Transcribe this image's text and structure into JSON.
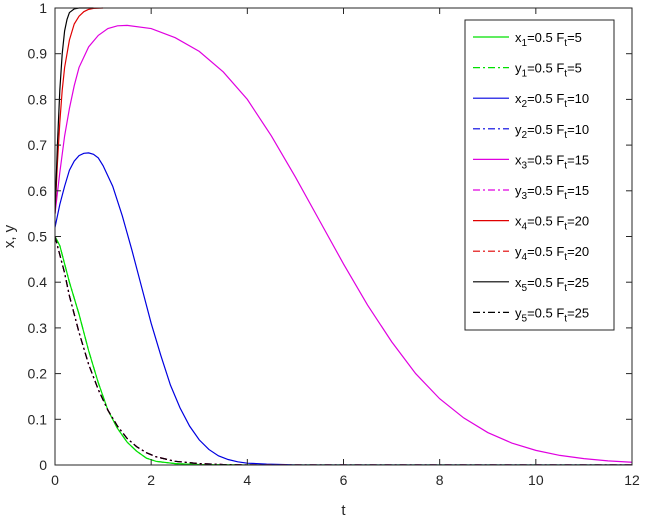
{
  "chart_data": {
    "type": "line",
    "xlabel": "t",
    "ylabel": "x, y",
    "xlim": [
      0,
      12
    ],
    "ylim": [
      0,
      1
    ],
    "x_ticks": [
      0,
      2,
      4,
      6,
      8,
      10,
      12
    ],
    "y_ticks": [
      0,
      0.1,
      0.2,
      0.3,
      0.4,
      0.5,
      0.6,
      0.7,
      0.8,
      0.9,
      1
    ],
    "grid": false,
    "legend_position": "top-right",
    "series": [
      {
        "name_main": "x",
        "name_sub": "1",
        "name_mid": "=0.5 F",
        "name_sub2": "t",
        "name_end": "=5",
        "color": "#00e000",
        "style": "solid",
        "x": [
          0,
          0.1,
          0.2,
          0.3,
          0.5,
          0.7,
          0.9,
          1.1,
          1.3,
          1.5,
          1.7,
          1.9,
          2.1,
          2.5,
          3,
          3.5,
          4,
          12
        ],
        "y": [
          0.5,
          0.48,
          0.44,
          0.4,
          0.33,
          0.25,
          0.18,
          0.12,
          0.08,
          0.05,
          0.03,
          0.015,
          0.008,
          0.003,
          0.001,
          0.0005,
          0,
          0
        ]
      },
      {
        "name_main": "y",
        "name_sub": "1",
        "name_mid": "=0.5 F",
        "name_sub2": "t",
        "name_end": "=5",
        "color": "#00e000",
        "style": "dashdot",
        "x": [
          0,
          0.1,
          0.2,
          0.3,
          0.5,
          0.7,
          0.9,
          1.1,
          1.3,
          1.5,
          1.7,
          1.9,
          2.1,
          2.5,
          3,
          3.5,
          4,
          12
        ],
        "y": [
          0.5,
          0.48,
          0.44,
          0.4,
          0.33,
          0.25,
          0.18,
          0.12,
          0.08,
          0.05,
          0.03,
          0.015,
          0.008,
          0.003,
          0.001,
          0.0005,
          0,
          0
        ]
      },
      {
        "name_main": "x",
        "name_sub": "2",
        "name_mid": "=0.5 F",
        "name_sub2": "t",
        "name_end": "=10",
        "color": "#0000e0",
        "style": "solid",
        "x": [
          0,
          0.1,
          0.2,
          0.3,
          0.4,
          0.5,
          0.6,
          0.7,
          0.8,
          0.9,
          1.0,
          1.2,
          1.4,
          1.6,
          1.8,
          2.0,
          2.2,
          2.4,
          2.6,
          2.8,
          3.0,
          3.2,
          3.4,
          3.6,
          3.8,
          4.0,
          4.4,
          4.8,
          5,
          12
        ],
        "y": [
          0.52,
          0.57,
          0.61,
          0.645,
          0.665,
          0.677,
          0.682,
          0.683,
          0.68,
          0.672,
          0.655,
          0.61,
          0.545,
          0.47,
          0.39,
          0.31,
          0.24,
          0.175,
          0.125,
          0.085,
          0.055,
          0.034,
          0.02,
          0.012,
          0.007,
          0.004,
          0.002,
          0.001,
          0,
          0
        ]
      },
      {
        "name_main": "y",
        "name_sub": "2",
        "name_mid": "=0.5 F",
        "name_sub2": "t",
        "name_end": "=10",
        "color": "#0000e0",
        "style": "dashdot",
        "x": [
          0,
          0.1,
          0.2,
          0.3,
          0.5,
          0.7,
          0.9,
          1.1,
          1.3,
          1.5,
          1.7,
          1.9,
          2.1,
          2.5,
          3,
          3.5,
          4,
          12
        ],
        "y": [
          0.5,
          0.46,
          0.42,
          0.37,
          0.29,
          0.22,
          0.165,
          0.12,
          0.085,
          0.058,
          0.04,
          0.027,
          0.018,
          0.008,
          0.003,
          0.001,
          0,
          0
        ]
      },
      {
        "name_main": "x",
        "name_sub": "3",
        "name_mid": "=0.5 F",
        "name_sub2": "t",
        "name_end": "=15",
        "color": "#e000e0",
        "style": "solid",
        "x": [
          0,
          0.1,
          0.2,
          0.3,
          0.4,
          0.5,
          0.7,
          0.9,
          1.1,
          1.3,
          1.5,
          2.0,
          2.5,
          3.0,
          3.5,
          4.0,
          4.5,
          5.0,
          5.5,
          6.0,
          6.5,
          7.0,
          7.5,
          8.0,
          8.5,
          9.0,
          9.5,
          10.0,
          10.5,
          11.0,
          11.5,
          12.0
        ],
        "y": [
          0.55,
          0.64,
          0.72,
          0.78,
          0.83,
          0.87,
          0.915,
          0.94,
          0.955,
          0.961,
          0.962,
          0.955,
          0.935,
          0.905,
          0.86,
          0.8,
          0.72,
          0.63,
          0.535,
          0.44,
          0.35,
          0.27,
          0.2,
          0.145,
          0.103,
          0.071,
          0.048,
          0.032,
          0.021,
          0.014,
          0.009,
          0.006
        ]
      },
      {
        "name_main": "y",
        "name_sub": "3",
        "name_mid": "=0.5 F",
        "name_sub2": "t",
        "name_end": "=15",
        "color": "#e000e0",
        "style": "dashdot",
        "x": [
          0,
          0.1,
          0.2,
          0.3,
          0.5,
          0.7,
          0.9,
          1.1,
          1.3,
          1.5,
          1.7,
          1.9,
          2.1,
          2.5,
          3,
          3.5,
          4,
          12
        ],
        "y": [
          0.5,
          0.46,
          0.42,
          0.37,
          0.29,
          0.22,
          0.165,
          0.12,
          0.085,
          0.058,
          0.04,
          0.027,
          0.018,
          0.008,
          0.003,
          0.001,
          0,
          0
        ]
      },
      {
        "name_main": "x",
        "name_sub": "4",
        "name_mid": "=0.5 F",
        "name_sub2": "t",
        "name_end": "=20",
        "color": "#e00000",
        "style": "solid",
        "x": [
          0,
          0.05,
          0.1,
          0.15,
          0.2,
          0.3,
          0.4,
          0.5,
          0.6,
          0.7,
          0.8,
          1.0
        ],
        "y": [
          0.55,
          0.66,
          0.75,
          0.82,
          0.87,
          0.93,
          0.965,
          0.982,
          0.992,
          0.997,
          0.999,
          1.0
        ]
      },
      {
        "name_main": "y",
        "name_sub": "4",
        "name_mid": "=0.5 F",
        "name_sub2": "t",
        "name_end": "=20",
        "color": "#e00000",
        "style": "dashdot",
        "x": [
          0,
          0.1,
          0.2,
          0.3,
          0.5,
          0.7,
          0.9,
          1.1,
          1.3,
          1.5,
          1.7,
          1.9,
          2.1,
          2.5,
          3,
          3.5,
          4,
          12
        ],
        "y": [
          0.5,
          0.46,
          0.42,
          0.37,
          0.29,
          0.22,
          0.165,
          0.12,
          0.085,
          0.058,
          0.04,
          0.027,
          0.018,
          0.008,
          0.003,
          0.001,
          0,
          0
        ]
      },
      {
        "name_main": "x",
        "name_sub": "5",
        "name_mid": "=0.5 F",
        "name_sub2": "t",
        "name_end": "=25",
        "color": "#000000",
        "style": "solid",
        "x": [
          0,
          0.05,
          0.1,
          0.15,
          0.2,
          0.25,
          0.3,
          0.4,
          0.5,
          0.6,
          0.8
        ],
        "y": [
          0.55,
          0.7,
          0.82,
          0.9,
          0.95,
          0.975,
          0.99,
          0.998,
          1.0,
          1.0,
          1.0
        ]
      },
      {
        "name_main": "y",
        "name_sub": "5",
        "name_mid": "=0.5 F",
        "name_sub2": "t",
        "name_end": "=25",
        "color": "#000000",
        "style": "dashdot",
        "x": [
          0,
          0.1,
          0.2,
          0.3,
          0.5,
          0.7,
          0.9,
          1.1,
          1.3,
          1.5,
          1.7,
          1.9,
          2.1,
          2.5,
          3,
          3.5,
          4,
          12
        ],
        "y": [
          0.5,
          0.46,
          0.42,
          0.37,
          0.29,
          0.22,
          0.165,
          0.12,
          0.085,
          0.058,
          0.04,
          0.027,
          0.018,
          0.008,
          0.003,
          0.001,
          0,
          0
        ]
      }
    ]
  }
}
